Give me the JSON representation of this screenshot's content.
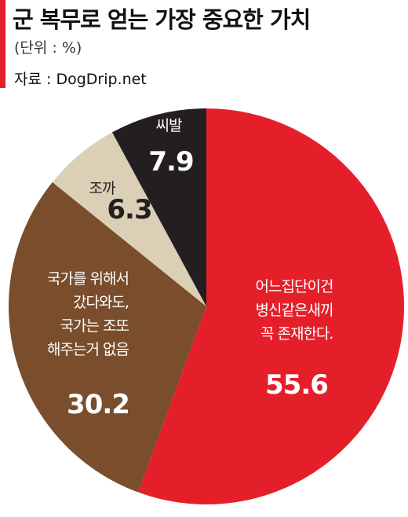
{
  "chart_data": {
    "type": "pie",
    "title": "군 복무로 얻는 가장 중요한 가치",
    "subtitle": "(단위 : %)",
    "source": "자료 : DogDrip.net",
    "categories": [
      "어느집단이건\n병신같은새끼\n꼭 존재한다.",
      "국가를 위해서\n갔다와도,\n국가는 조또\n해주는거 없음",
      "조까",
      "씨발"
    ],
    "values": [
      55.6,
      30.2,
      6.3,
      7.9
    ],
    "colors": [
      "#e51f2a",
      "#7a4d2c",
      "#dbcfb6",
      "#231f20"
    ],
    "label_colors": [
      "#ffffff",
      "#ffffff",
      "#231f20",
      "#ffffff"
    ]
  }
}
